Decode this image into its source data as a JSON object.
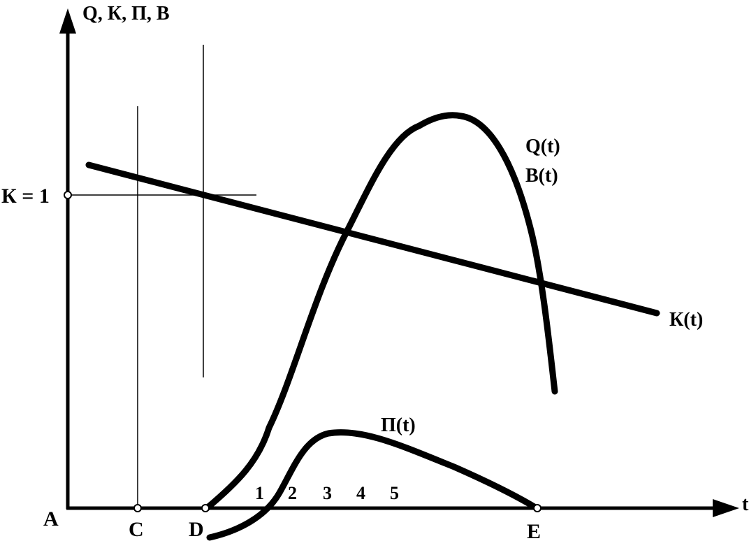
{
  "axes": {
    "y_label": "Q, К, П, В",
    "x_label": "t",
    "origin_label": "A"
  },
  "reference": {
    "k_level_label": "К = 1"
  },
  "points": {
    "c": "C",
    "d": "D",
    "e": "E"
  },
  "curves": {
    "q_label": "Q(t)",
    "b_label": "B(t)",
    "k_label": "К(t)",
    "p_label": "П(t)"
  },
  "tick_numbers": [
    "1",
    "2",
    "3",
    "4",
    "5"
  ]
}
